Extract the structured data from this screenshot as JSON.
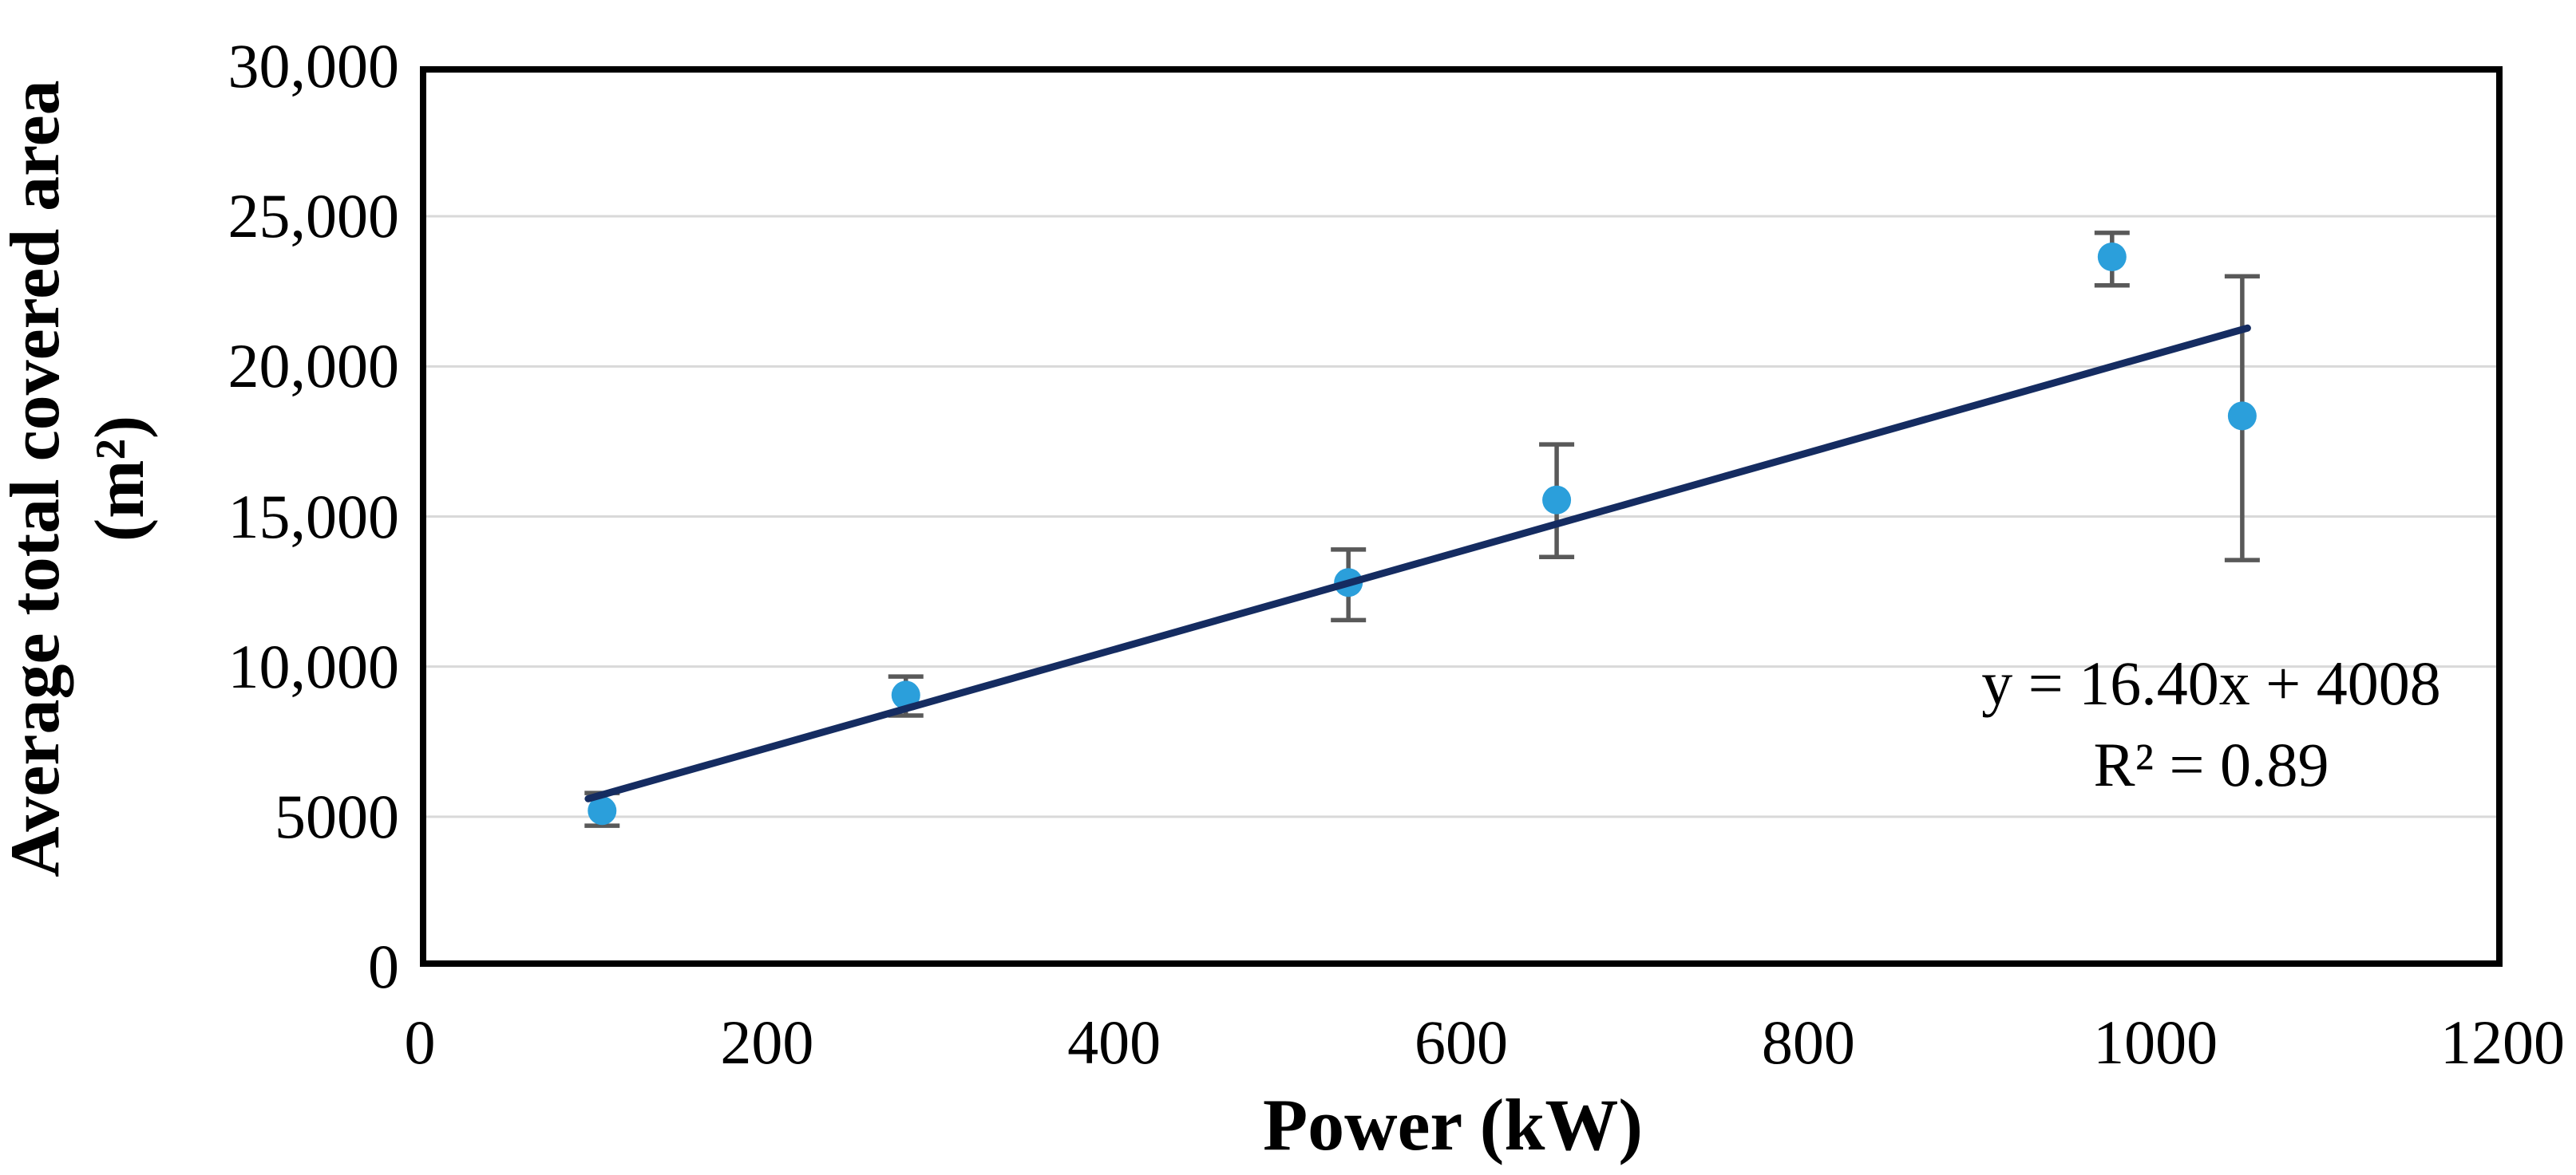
{
  "chart_data": {
    "type": "scatter",
    "title": "",
    "xlabel": "Power (kW)",
    "ylabel": "Average total covered area (m²)",
    "ylabel_lines": [
      "Average total covered area",
      "(m²)"
    ],
    "xlim": [
      0,
      1200
    ],
    "ylim": [
      0,
      30000
    ],
    "x_tick_values": [
      0,
      200,
      400,
      600,
      800,
      1000,
      1200
    ],
    "x_tick_labels": [
      "0",
      "200",
      "400",
      "600",
      "800",
      "1000",
      "1200"
    ],
    "y_tick_values": [
      0,
      5000,
      10000,
      15000,
      20000,
      25000,
      30000
    ],
    "y_tick_labels": [
      "0",
      "5000",
      "10,000",
      "15,000",
      "20,000",
      "25,000",
      "30,000"
    ],
    "grid": "horizontal",
    "legend_position": "none",
    "series": [
      {
        "name": "Average total covered area",
        "marker": "circle",
        "points": [
          {
            "x": 105,
            "y": 5200,
            "err_low": 4700,
            "err_high": 5790
          },
          {
            "x": 280,
            "y": 9050,
            "err_low": 8370,
            "err_high": 9670
          },
          {
            "x": 535,
            "y": 12800,
            "err_low": 11550,
            "err_high": 13900
          },
          {
            "x": 655,
            "y": 15550,
            "err_low": 13650,
            "err_high": 17400
          },
          {
            "x": 975,
            "y": 23650,
            "err_low": 22700,
            "err_high": 24450
          },
          {
            "x": 1050,
            "y": 18350,
            "err_low": 13550,
            "err_high": 23000
          }
        ]
      }
    ],
    "trendline": {
      "type": "linear",
      "slope": 16.4,
      "intercept": 4008,
      "r_squared": 0.89,
      "x_start": 97,
      "x_end": 1053,
      "equation_label": "y = 16.40x + 4008",
      "r2_label": "R² = 0.89"
    }
  },
  "colors": {
    "marker": "#2B9FDB",
    "trendline": "#152C61",
    "error_bar": "#595959",
    "gridline": "#D9D9D9",
    "axis_border": "#000000",
    "background": "#FFFFFF",
    "text": "#000000"
  }
}
